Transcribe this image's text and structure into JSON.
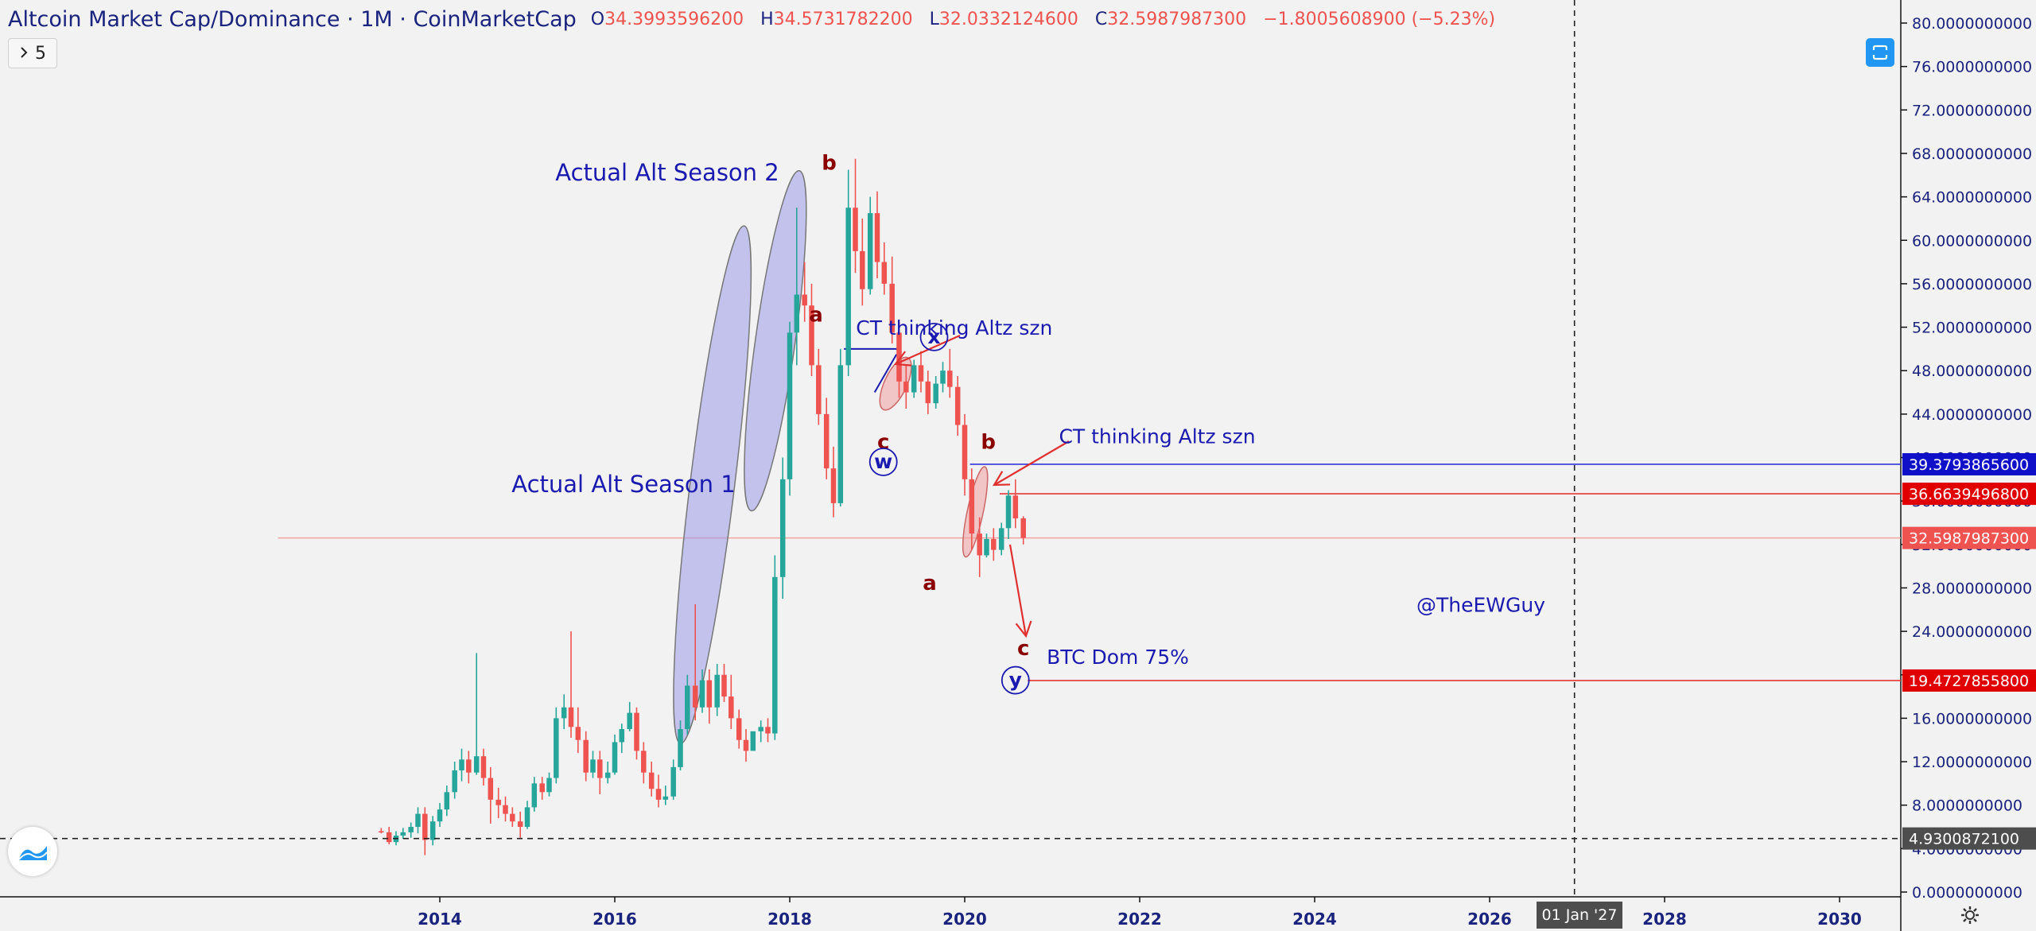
{
  "header": {
    "title": "Altcoin Market Cap/Dominance · 1M · CoinMarketCap",
    "open_label": "O",
    "open_value": "34.3993596200",
    "high_label": "H",
    "high_value": "34.5731782200",
    "low_label": "L",
    "low_value": "32.0332124600",
    "close_label": "C",
    "close_value": "32.5987987300",
    "change": "−1.8005608900 (−5.23%)"
  },
  "indicator_toggle": {
    "label": "5",
    "icon": "chevron-right-icon"
  },
  "crosshair_x_label": "01 Jan '27",
  "colors": {
    "up": "#26a69a",
    "down": "#ef5350",
    "label_blue": "#1a1ab0",
    "label_red": "#8b0000",
    "ellipse_blue": "#9a9ae8",
    "ellipse_red": "#f0a0a0"
  },
  "chart_data": {
    "type": "candlestick",
    "title": "Altcoin Market Cap/Dominance",
    "interval": "1M",
    "source": "CoinMarketCap",
    "x_ticks": [
      "2014",
      "2016",
      "2018",
      "2020",
      "2022",
      "2024",
      "2026",
      "2028",
      "2030"
    ],
    "y_ticks": [
      "0.0000000000",
      "4.0000000000",
      "8.0000000000",
      "12.0000000000",
      "16.0000000000",
      "20.0000000000",
      "24.0000000000",
      "28.0000000000",
      "32.0000000000",
      "36.0000000000",
      "40.0000000000",
      "44.0000000000",
      "48.0000000000",
      "52.0000000000",
      "56.0000000000",
      "60.0000000000",
      "64.0000000000",
      "68.0000000000",
      "72.0000000000",
      "76.0000000000",
      "80.0000000000"
    ],
    "ylim": [
      0,
      82
    ],
    "xlim": [
      2012.15,
      2030.95
    ],
    "candles": [
      {
        "t": 2013.33,
        "o": 5.6,
        "h": 5.9,
        "c": 5.5,
        "l": 5.4
      },
      {
        "t": 2013.42,
        "o": 5.5,
        "h": 6.0,
        "c": 4.6,
        "l": 4.4
      },
      {
        "t": 2013.5,
        "o": 4.6,
        "h": 5.6,
        "c": 5.2,
        "l": 4.3
      },
      {
        "t": 2013.58,
        "o": 5.2,
        "h": 5.9,
        "c": 5.5,
        "l": 4.9
      },
      {
        "t": 2013.67,
        "o": 5.5,
        "h": 6.4,
        "c": 6.0,
        "l": 5.0
      },
      {
        "t": 2013.75,
        "o": 6.0,
        "h": 7.8,
        "c": 7.2,
        "l": 5.4
      },
      {
        "t": 2013.83,
        "o": 7.2,
        "h": 7.8,
        "c": 4.8,
        "l": 3.4
      },
      {
        "t": 2013.92,
        "o": 4.8,
        "h": 7.0,
        "c": 6.5,
        "l": 4.3
      },
      {
        "t": 2014.0,
        "o": 6.5,
        "h": 8.2,
        "c": 7.6,
        "l": 6.0
      },
      {
        "t": 2014.08,
        "o": 7.6,
        "h": 9.8,
        "c": 9.2,
        "l": 7.0
      },
      {
        "t": 2014.17,
        "o": 9.2,
        "h": 12.0,
        "c": 11.2,
        "l": 8.6
      },
      {
        "t": 2014.25,
        "o": 11.2,
        "h": 13.2,
        "c": 12.2,
        "l": 10.2
      },
      {
        "t": 2014.33,
        "o": 12.2,
        "h": 13.0,
        "c": 11.0,
        "l": 10.0
      },
      {
        "t": 2014.42,
        "o": 11.0,
        "h": 22.0,
        "c": 12.5,
        "l": 10.8
      },
      {
        "t": 2014.5,
        "o": 12.5,
        "h": 13.2,
        "c": 10.5,
        "l": 9.8
      },
      {
        "t": 2014.58,
        "o": 10.5,
        "h": 11.5,
        "c": 8.5,
        "l": 6.3
      },
      {
        "t": 2014.67,
        "o": 8.5,
        "h": 9.6,
        "c": 8.0,
        "l": 6.8
      },
      {
        "t": 2014.75,
        "o": 8.0,
        "h": 8.8,
        "c": 7.2,
        "l": 6.5
      },
      {
        "t": 2014.83,
        "o": 7.2,
        "h": 7.8,
        "c": 6.5,
        "l": 6.0
      },
      {
        "t": 2014.92,
        "o": 6.5,
        "h": 7.4,
        "c": 6.0,
        "l": 5.0
      },
      {
        "t": 2015.0,
        "o": 6.0,
        "h": 8.4,
        "c": 7.8,
        "l": 5.8
      },
      {
        "t": 2015.08,
        "o": 7.8,
        "h": 10.6,
        "c": 10.0,
        "l": 7.4
      },
      {
        "t": 2015.17,
        "o": 10.0,
        "h": 10.6,
        "c": 9.2,
        "l": 8.5
      },
      {
        "t": 2015.25,
        "o": 9.2,
        "h": 11.0,
        "c": 10.5,
        "l": 8.8
      },
      {
        "t": 2015.33,
        "o": 10.5,
        "h": 17.0,
        "c": 16.0,
        "l": 10.0
      },
      {
        "t": 2015.42,
        "o": 16.0,
        "h": 18.2,
        "c": 17.0,
        "l": 15.0
      },
      {
        "t": 2015.5,
        "o": 17.0,
        "h": 24.0,
        "c": 15.2,
        "l": 14.2
      },
      {
        "t": 2015.58,
        "o": 15.2,
        "h": 17.0,
        "c": 14.0,
        "l": 12.8
      },
      {
        "t": 2015.67,
        "o": 14.0,
        "h": 14.8,
        "c": 11.0,
        "l": 10.2
      },
      {
        "t": 2015.75,
        "o": 11.0,
        "h": 13.0,
        "c": 12.2,
        "l": 10.5
      },
      {
        "t": 2015.83,
        "o": 12.2,
        "h": 13.0,
        "c": 10.5,
        "l": 9.0
      },
      {
        "t": 2015.92,
        "o": 10.5,
        "h": 12.0,
        "c": 11.0,
        "l": 10.0
      },
      {
        "t": 2016.0,
        "o": 11.0,
        "h": 14.5,
        "c": 13.8,
        "l": 10.8
      },
      {
        "t": 2016.08,
        "o": 13.8,
        "h": 15.5,
        "c": 15.0,
        "l": 12.8
      },
      {
        "t": 2016.17,
        "o": 15.0,
        "h": 17.5,
        "c": 16.5,
        "l": 14.8
      },
      {
        "t": 2016.25,
        "o": 16.5,
        "h": 17.0,
        "c": 13.0,
        "l": 12.2
      },
      {
        "t": 2016.33,
        "o": 13.0,
        "h": 13.8,
        "c": 11.0,
        "l": 10.0
      },
      {
        "t": 2016.42,
        "o": 11.0,
        "h": 12.0,
        "c": 9.5,
        "l": 8.8
      },
      {
        "t": 2016.5,
        "o": 9.5,
        "h": 10.8,
        "c": 8.5,
        "l": 7.8
      },
      {
        "t": 2016.58,
        "o": 8.5,
        "h": 9.8,
        "c": 8.8,
        "l": 8.0
      },
      {
        "t": 2016.67,
        "o": 8.8,
        "h": 12.2,
        "c": 11.5,
        "l": 8.5
      },
      {
        "t": 2016.75,
        "o": 11.5,
        "h": 15.8,
        "c": 15.0,
        "l": 11.2
      },
      {
        "t": 2016.83,
        "o": 15.0,
        "h": 20.0,
        "c": 19.0,
        "l": 14.5
      },
      {
        "t": 2016.92,
        "o": 19.0,
        "h": 26.5,
        "c": 17.0,
        "l": 15.8
      },
      {
        "t": 2017.0,
        "o": 17.0,
        "h": 20.5,
        "c": 19.5,
        "l": 16.5
      },
      {
        "t": 2017.08,
        "o": 19.5,
        "h": 20.5,
        "c": 17.0,
        "l": 15.5
      },
      {
        "t": 2017.17,
        "o": 17.0,
        "h": 21.0,
        "c": 20.0,
        "l": 16.2
      },
      {
        "t": 2017.25,
        "o": 20.0,
        "h": 21.0,
        "c": 18.0,
        "l": 17.5
      },
      {
        "t": 2017.33,
        "o": 18.0,
        "h": 20.0,
        "c": 16.0,
        "l": 15.0
      },
      {
        "t": 2017.42,
        "o": 16.0,
        "h": 16.8,
        "c": 14.0,
        "l": 13.2
      },
      {
        "t": 2017.5,
        "o": 14.0,
        "h": 15.0,
        "c": 13.0,
        "l": 12.0
      },
      {
        "t": 2017.58,
        "o": 13.0,
        "h": 14.2,
        "c": 14.8,
        "l": 13.5
      },
      {
        "t": 2017.67,
        "o": 14.8,
        "h": 15.8,
        "c": 15.2,
        "l": 13.8
      },
      {
        "t": 2017.75,
        "o": 15.2,
        "h": 16.0,
        "c": 14.6,
        "l": 13.8
      },
      {
        "t": 2017.83,
        "o": 14.6,
        "h": 31.0,
        "c": 29.0,
        "l": 14.0
      },
      {
        "t": 2017.92,
        "o": 29.0,
        "h": 40.0,
        "c": 38.0,
        "l": 27.0
      },
      {
        "t": 2018.0,
        "o": 38.0,
        "h": 52.5,
        "c": 51.5,
        "l": 36.5
      },
      {
        "t": 2018.08,
        "o": 51.5,
        "h": 63.0,
        "c": 55.0,
        "l": 48.5
      },
      {
        "t": 2018.17,
        "o": 55.0,
        "h": 58.0,
        "c": 54.0,
        "l": 52.5
      },
      {
        "t": 2018.25,
        "o": 54.0,
        "h": 56.0,
        "c": 48.5,
        "l": 47.5
      },
      {
        "t": 2018.33,
        "o": 48.5,
        "h": 50.0,
        "c": 44.0,
        "l": 43.0
      },
      {
        "t": 2018.42,
        "o": 44.0,
        "h": 45.5,
        "c": 39.0,
        "l": 38.0
      },
      {
        "t": 2018.5,
        "o": 39.0,
        "h": 41.0,
        "c": 35.8,
        "l": 34.5
      },
      {
        "t": 2018.58,
        "o": 35.8,
        "h": 50.0,
        "c": 48.5,
        "l": 35.5
      },
      {
        "t": 2018.67,
        "o": 48.5,
        "h": 66.5,
        "c": 63.0,
        "l": 47.5
      },
      {
        "t": 2018.75,
        "o": 63.0,
        "h": 67.5,
        "c": 59.0,
        "l": 57.0
      },
      {
        "t": 2018.83,
        "o": 59.0,
        "h": 62.0,
        "c": 55.5,
        "l": 54.0
      },
      {
        "t": 2018.92,
        "o": 55.5,
        "h": 64.0,
        "c": 62.5,
        "l": 55.0
      },
      {
        "t": 2019.0,
        "o": 62.5,
        "h": 64.5,
        "c": 58.0,
        "l": 56.5
      },
      {
        "t": 2019.08,
        "o": 58.0,
        "h": 59.8,
        "c": 56.0,
        "l": 55.0
      },
      {
        "t": 2019.17,
        "o": 56.0,
        "h": 58.5,
        "c": 51.5,
        "l": 50.5
      },
      {
        "t": 2019.25,
        "o": 51.5,
        "h": 52.5,
        "c": 47.0,
        "l": 45.5
      },
      {
        "t": 2019.33,
        "o": 47.0,
        "h": 48.5,
        "c": 46.0,
        "l": 44.5
      },
      {
        "t": 2019.42,
        "o": 46.0,
        "h": 49.0,
        "c": 48.5,
        "l": 45.5
      },
      {
        "t": 2019.5,
        "o": 48.5,
        "h": 49.8,
        "c": 47.0,
        "l": 46.0
      },
      {
        "t": 2019.58,
        "o": 47.0,
        "h": 48.0,
        "c": 45.0,
        "l": 44.0
      },
      {
        "t": 2019.67,
        "o": 45.0,
        "h": 47.5,
        "c": 46.8,
        "l": 44.5
      },
      {
        "t": 2019.75,
        "o": 46.8,
        "h": 48.8,
        "c": 48.0,
        "l": 46.0
      },
      {
        "t": 2019.83,
        "o": 48.0,
        "h": 50.0,
        "c": 46.5,
        "l": 45.5
      },
      {
        "t": 2019.92,
        "o": 46.5,
        "h": 47.5,
        "c": 43.0,
        "l": 42.0
      },
      {
        "t": 2020.0,
        "o": 43.0,
        "h": 44.0,
        "c": 38.0,
        "l": 36.5
      },
      {
        "t": 2020.08,
        "o": 38.0,
        "h": 39.0,
        "c": 33.0,
        "l": 31.5
      },
      {
        "t": 2020.17,
        "o": 33.0,
        "h": 34.5,
        "c": 31.0,
        "l": 29.0
      },
      {
        "t": 2020.25,
        "o": 31.0,
        "h": 33.0,
        "c": 32.5,
        "l": 30.8
      },
      {
        "t": 2020.33,
        "o": 32.5,
        "h": 33.5,
        "c": 31.5,
        "l": 30.5
      },
      {
        "t": 2020.42,
        "o": 31.5,
        "h": 34.0,
        "c": 33.5,
        "l": 31.0
      },
      {
        "t": 2020.5,
        "o": 33.5,
        "h": 37.0,
        "c": 36.5,
        "l": 32.5
      },
      {
        "t": 2020.58,
        "o": 36.5,
        "h": 38.0,
        "c": 34.4,
        "l": 33.5
      },
      {
        "t": 2020.67,
        "o": 34.4,
        "h": 34.6,
        "c": 32.6,
        "l": 32.0
      }
    ],
    "annotations": {
      "texts": [
        {
          "id": "season2",
          "text": "Actual Alt Season 2",
          "t": 2016.6,
          "v": 65.5,
          "color": "#1a1ab0",
          "size": 29
        },
        {
          "id": "season1",
          "text": "Actual Alt Season 1",
          "t": 2016.1,
          "v": 36.8,
          "color": "#1a1ab0",
          "size": 29
        },
        {
          "id": "ct1",
          "text": "CT thinking Altz szn",
          "t": 2019.88,
          "v": 51.3,
          "color": "#1a1ab0",
          "size": 25
        },
        {
          "id": "ct2",
          "text": "CT thinking Altz szn",
          "t": 2022.2,
          "v": 41.3,
          "color": "#1a1ab0",
          "size": 25
        },
        {
          "id": "btcdom",
          "text": "BTC Dom 75%",
          "t": 2021.75,
          "v": 21.0,
          "color": "#1a1ab0",
          "size": 25
        },
        {
          "id": "handle",
          "text": "@TheEWGuy",
          "t": 2025.9,
          "v": 25.8,
          "color": "#1a1ab0",
          "size": 25
        },
        {
          "id": "b1",
          "text": "b",
          "t": 2018.45,
          "v": 66.5,
          "color": "#8b0000",
          "size": 26
        },
        {
          "id": "a1",
          "text": "a",
          "t": 2018.3,
          "v": 52.5,
          "color": "#8b0000",
          "size": 26
        },
        {
          "id": "c1",
          "text": "c",
          "t": 2019.07,
          "v": 40.8,
          "color": "#8b0000",
          "size": 26
        },
        {
          "id": "b2",
          "text": "b",
          "t": 2020.27,
          "v": 40.8,
          "color": "#8b0000",
          "size": 26
        },
        {
          "id": "a2",
          "text": "a",
          "t": 2019.6,
          "v": 27.8,
          "color": "#8b0000",
          "size": 26
        },
        {
          "id": "c2",
          "text": "c",
          "t": 2020.67,
          "v": 21.8,
          "color": "#8b0000",
          "size": 26
        }
      ],
      "circles": [
        {
          "id": "w",
          "text": "w",
          "t": 2019.07,
          "v": 39.6
        },
        {
          "id": "x",
          "text": "x",
          "t": 2019.65,
          "v": 51.1
        },
        {
          "id": "y",
          "text": "y",
          "t": 2020.58,
          "v": 19.5
        }
      ],
      "price_lines": [
        {
          "id": "line-39",
          "value": 39.37938656,
          "label": "39.3793865600",
          "color": "#3434d8",
          "from_t": 2020.06,
          "label_bg": "#1010c8"
        },
        {
          "id": "line-36",
          "value": 36.66394968,
          "label": "36.6639496800",
          "color": "#e53935",
          "from_t": 2020.4,
          "label_bg": "#e00000"
        },
        {
          "id": "line-32",
          "value": 32.59879873,
          "label": "32.5987987300",
          "color": "#f4a3a3",
          "from_t": 2012.15,
          "label_bg": "#ef5350"
        },
        {
          "id": "line-19",
          "value": 19.47278558,
          "label": "19.4727855800",
          "color": "#e53935",
          "from_t": 2020.72,
          "label_bg": "#e00000"
        }
      ],
      "crosshair": {
        "t": 2026.97,
        "v": 4.93008721,
        "label": "4.9300872100"
      }
    }
  }
}
